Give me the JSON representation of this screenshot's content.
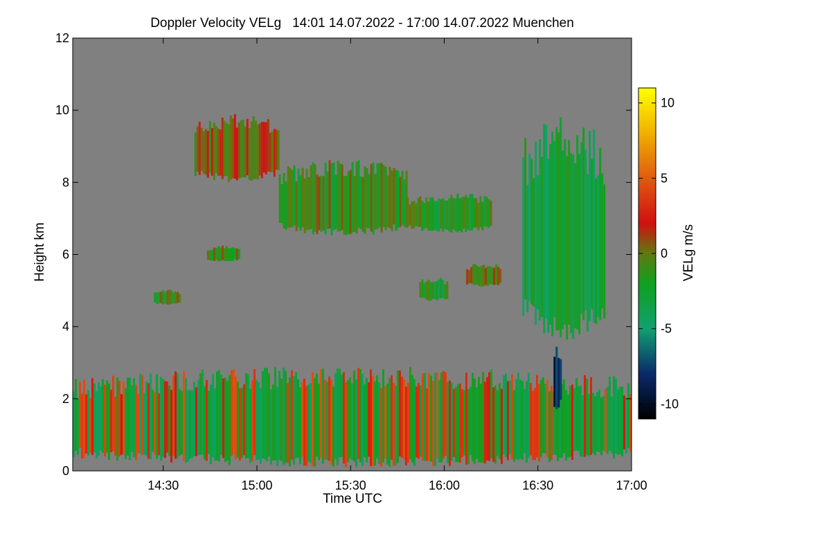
{
  "chart_data": {
    "type": "heatmap",
    "title": "Doppler Velocity VELg   14:01 14.07.2022 - 17:00 14.07.2022 Muenchen",
    "xlabel": "Time UTC",
    "ylabel": "Height km",
    "colorbar_label": "VELg m/s",
    "x_range_minutes": [
      841,
      1020
    ],
    "x_ticks": [
      {
        "value": 870,
        "label": "14:30"
      },
      {
        "value": 900,
        "label": "15:00"
      },
      {
        "value": 930,
        "label": "15:30"
      },
      {
        "value": 960,
        "label": "16:00"
      },
      {
        "value": 990,
        "label": "16:30"
      },
      {
        "value": 1020,
        "label": "17:00"
      }
    ],
    "ylim": [
      0,
      12
    ],
    "y_ticks": [
      {
        "value": 0,
        "label": "0"
      },
      {
        "value": 2,
        "label": "2"
      },
      {
        "value": 4,
        "label": "4"
      },
      {
        "value": 6,
        "label": "6"
      },
      {
        "value": 8,
        "label": "8"
      },
      {
        "value": 10,
        "label": "10"
      },
      {
        "value": 12,
        "label": "12"
      }
    ],
    "colorbar_range": [
      -11,
      11
    ],
    "colorbar_ticks": [
      {
        "value": 10,
        "label": "10"
      },
      {
        "value": 5,
        "label": "5"
      },
      {
        "value": 0,
        "label": "0"
      },
      {
        "value": -5,
        "label": "-5"
      },
      {
        "value": -10,
        "label": "-10"
      }
    ],
    "colormap": [
      {
        "v": -11,
        "color": "#000000"
      },
      {
        "v": -8,
        "color": "#0a2a6a"
      },
      {
        "v": -5,
        "color": "#10a070"
      },
      {
        "v": -2,
        "color": "#10a020"
      },
      {
        "v": 0,
        "color": "#607a10"
      },
      {
        "v": 2,
        "color": "#d01010"
      },
      {
        "v": 5,
        "color": "#e05a10"
      },
      {
        "v": 8,
        "color": "#f0b000"
      },
      {
        "v": 11,
        "color": "#ffff00"
      }
    ],
    "no_data_color": "#808080",
    "echo_regions": [
      {
        "name": "boundary-layer",
        "t_start": 841,
        "t_end": 1020,
        "h_bottom": 0.1,
        "h_top": 2.6,
        "velocity": -1.5
      },
      {
        "name": "upper-cloud-14h45",
        "t_start": 880,
        "t_end": 907,
        "h_bottom": 8.0,
        "h_top": 9.7,
        "velocity": 0.5
      },
      {
        "name": "cloud-band-15h",
        "t_start": 907,
        "t_end": 948,
        "h_bottom": 6.5,
        "h_top": 8.4,
        "velocity": -1.0
      },
      {
        "name": "cloud-band-16h",
        "t_start": 948,
        "t_end": 975,
        "h_bottom": 6.6,
        "h_top": 7.6,
        "velocity": -1.5
      },
      {
        "name": "convective-cell-16h40",
        "t_start": 985,
        "t_end": 1011,
        "h_bottom": 3.6,
        "h_top": 9.2,
        "velocity": -3.0
      },
      {
        "name": "fall-streak-16h39",
        "t_start": 995,
        "t_end": 997,
        "h_bottom": 1.6,
        "h_top": 3.3,
        "velocity": -9.0
      },
      {
        "name": "small-echo-14h50",
        "t_start": 884,
        "t_end": 894,
        "h_bottom": 5.8,
        "h_top": 6.2,
        "velocity": -1.0
      },
      {
        "name": "small-echo-14h30",
        "t_start": 867,
        "t_end": 875,
        "h_bottom": 4.6,
        "h_top": 5.0,
        "velocity": -1.0
      },
      {
        "name": "small-echo-15h55",
        "t_start": 952,
        "t_end": 961,
        "h_bottom": 4.7,
        "h_top": 5.3,
        "velocity": -2.0
      },
      {
        "name": "small-echo-16h10",
        "t_start": 967,
        "t_end": 978,
        "h_bottom": 5.1,
        "h_top": 5.7,
        "velocity": 0.0
      }
    ]
  }
}
